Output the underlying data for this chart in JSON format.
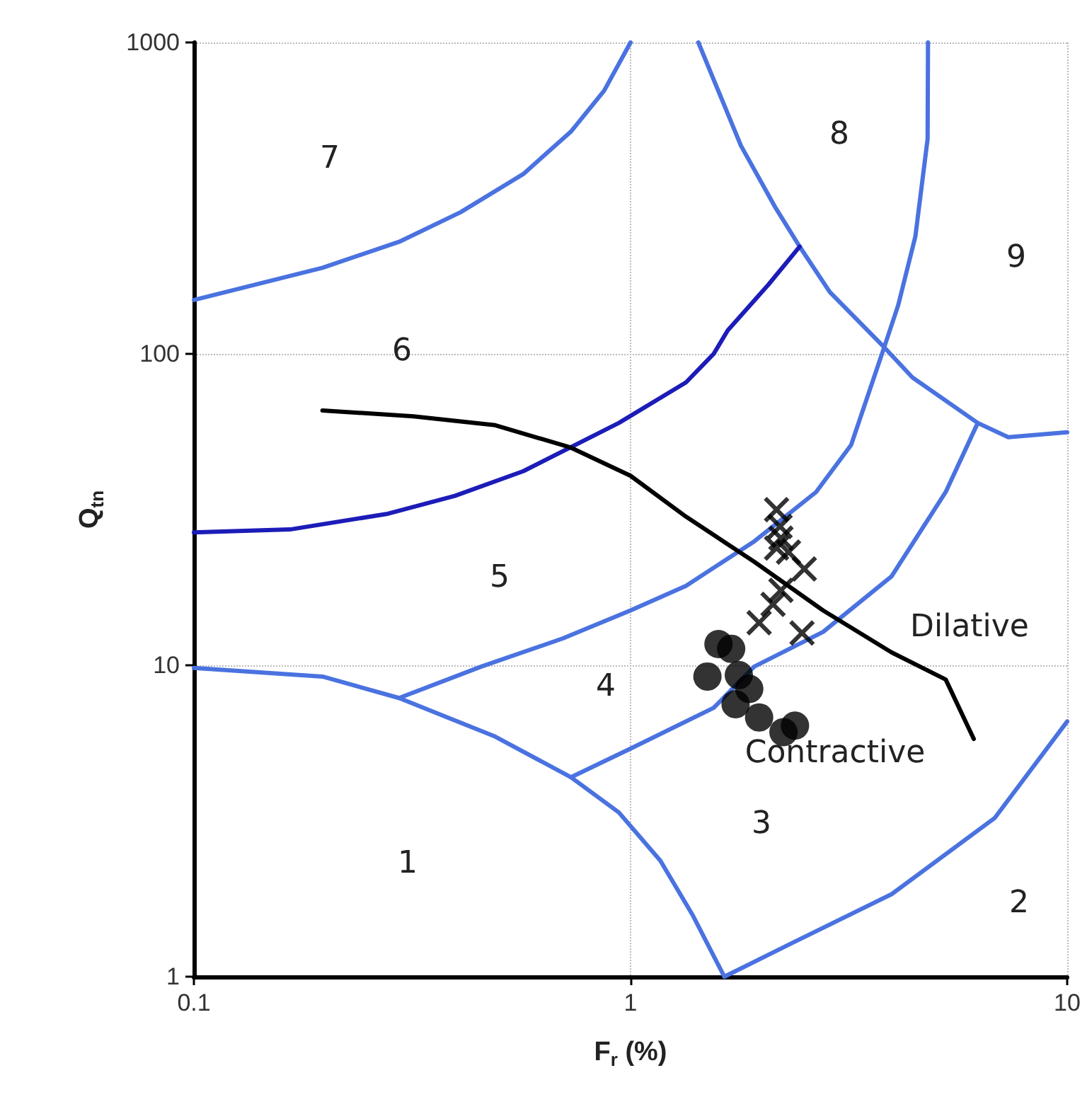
{
  "chart_data": {
    "type": "line",
    "xlabel": "F$_{r}$ (%)",
    "ylabel": "Q$_{tn}$",
    "log": "xy",
    "grid": true,
    "xlim": [
      0.1,
      10
    ],
    "xticks": [
      0.1,
      1,
      10
    ],
    "ylim": [
      1,
      1000
    ],
    "yticks": [
      1,
      10,
      100,
      1000
    ],
    "line_style": "solid",
    "series": [
      {
        "type": "line",
        "color": "#4a72e0",
        "marker": "none",
        "x": [
          0.1,
          0.197,
          0.295,
          0.408,
          0.568,
          0.73,
          0.87,
          1.0
        ],
        "values": [
          149,
          189,
          229,
          285,
          378,
          517,
          700,
          1000
        ]
      },
      {
        "type": "line",
        "color": "#4a72e0",
        "marker": "none",
        "x": [
          1.43,
          1.79,
          2.15,
          2.44,
          2.86,
          3.81,
          4.42,
          6.24,
          7.33,
          10
        ],
        "values": [
          1000,
          466,
          294,
          221,
          158,
          105,
          84,
          60,
          54,
          56
        ]
      },
      {
        "color": "#4a72e0",
        "marker": "none",
        "x": [
          4.8,
          4.79,
          4.49,
          4.1,
          3.81,
          3.2,
          2.66,
          1.92,
          1.34,
          1.0,
          0.7,
          0.455,
          0.295
        ],
        "values": [
          1000,
          490,
          238,
          143,
          105,
          51,
          36,
          25,
          18,
          15,
          12.2,
          9.9,
          7.85
        ]
      },
      {
        "type": "line",
        "color": "#1c1cb8",
        "marker": "none",
        "x": [
          0.1,
          0.166,
          0.276,
          0.396,
          0.568,
          0.94,
          1.34,
          1.55,
          1.67,
          2.07,
          2.44
        ],
        "values": [
          26.7,
          27.3,
          30.6,
          35,
          42,
          60,
          81,
          100,
          119,
          167,
          221
        ]
      },
      {
        "type": "line",
        "color": "#4a72e0",
        "marker": "none",
        "x": [
          0.73,
          1.0,
          1.55,
          1.92,
          2.76,
          3.96,
          5.27,
          6.24
        ],
        "values": [
          4.37,
          5.4,
          7.3,
          9.9,
          12.8,
          19.3,
          36,
          60
        ]
      },
      {
        "type": "line",
        "color": "#4a72e0",
        "marker": "none",
        "x": [
          0.1,
          0.197,
          0.295,
          0.49,
          0.73,
          0.94,
          1.17,
          1.39,
          1.64
        ],
        "values": [
          9.8,
          9.2,
          7.85,
          5.9,
          4.37,
          3.37,
          2.36,
          1.57,
          1.0
        ]
      },
      {
        "type": "line",
        "color": "#4a72e0",
        "marker": "none",
        "x": [
          1.64,
          2.31,
          3.96,
          6.82,
          10
        ],
        "values": [
          1.0,
          1.27,
          1.84,
          3.23,
          6.6
        ]
      },
      {
        "type": "line",
        "color": "#000000",
        "marker": "none",
        "x": [
          0.197,
          0.318,
          0.49,
          0.73,
          1.0,
          1.34,
          1.92,
          2.76,
          3.96,
          5.27,
          6.11
        ],
        "values": [
          65.8,
          63,
          59,
          50,
          40.6,
          30,
          21.5,
          15,
          11,
          9.0,
          5.8
        ]
      },
      {
        "type": "scatter",
        "color": "#000000",
        "marker": "cross",
        "x": [
          2.16,
          2.2,
          2.21,
          2.16,
          2.3,
          2.5,
          2.21,
          2.12,
          1.97,
          2.47
        ],
        "values": [
          31.6,
          27.9,
          25.6,
          23.8,
          23.1,
          20.4,
          17.4,
          15.7,
          13.7,
          12.7
        ]
      },
      {
        "type": "scatter",
        "color": "#000000",
        "marker": "circle",
        "x": [
          1.59,
          1.7,
          1.5,
          1.77,
          1.87,
          1.74,
          1.97,
          2.24,
          2.38
        ],
        "values": [
          11.7,
          11.3,
          9.2,
          9.3,
          8.4,
          7.5,
          6.8,
          6.1,
          6.4
        ]
      }
    ],
    "annotations": [
      "7",
      "8",
      "9",
      "6",
      "5",
      "4",
      "3",
      "1",
      "2",
      "Dilative",
      "Contractive"
    ]
  }
}
